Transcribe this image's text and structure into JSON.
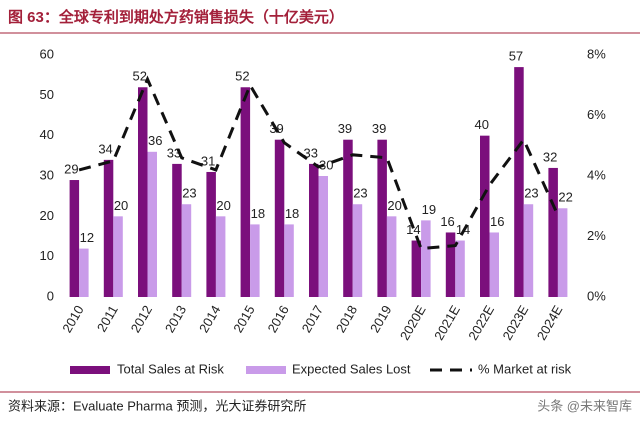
{
  "chart_data": {
    "type": "bar-line",
    "title": "图 63：全球专利到期处方药销售损失（十亿美元）",
    "source": "资料来源：Evaluate Pharma 预测，光大证券研究所",
    "watermark": "头条 @未来智库",
    "categories": [
      "2010",
      "2011",
      "2012",
      "2013",
      "2014",
      "2015",
      "2016",
      "2017",
      "2018",
      "2019",
      "2020E",
      "2021E",
      "2022E",
      "2023E",
      "2024E"
    ],
    "series": [
      {
        "name": "Total Sales at Risk",
        "color": "#7b0f7c",
        "values": [
          29,
          34,
          52,
          33,
          31,
          52,
          39,
          33,
          39,
          39,
          14,
          16,
          40,
          57,
          32
        ]
      },
      {
        "name": "Expected Sales Lost",
        "color": "#c99be9",
        "values": [
          12,
          20,
          36,
          23,
          20,
          18,
          18,
          30,
          23,
          20,
          19,
          14,
          16,
          23,
          22
        ]
      },
      {
        "name": "% Market at risk",
        "color": "#111111",
        "axis": "y2",
        "values": [
          4.2,
          4.5,
          7.2,
          4.6,
          4.2,
          7.0,
          5.1,
          4.3,
          4.7,
          4.6,
          1.6,
          1.7,
          3.7,
          5.2,
          2.7
        ]
      }
    ],
    "ylim": [
      0,
      60
    ],
    "yticks": [
      0,
      10,
      20,
      30,
      40,
      50,
      60
    ],
    "y2lim": [
      0,
      8
    ],
    "y2ticks": [
      {
        "value": 0,
        "label": "0%"
      },
      {
        "value": 2,
        "label": "2%"
      },
      {
        "value": 4,
        "label": "4%"
      },
      {
        "value": 6,
        "label": "6%"
      },
      {
        "value": 8,
        "label": "8%"
      }
    ]
  }
}
